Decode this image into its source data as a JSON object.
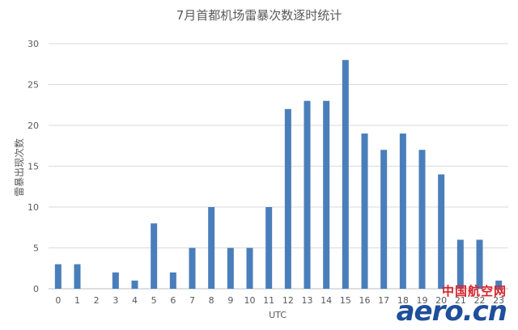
{
  "chart_data": {
    "type": "bar",
    "title": "7月首都机场雷暴次数逐时统计",
    "xlabel": "UTC",
    "ylabel": "雷暴出现次数",
    "categories": [
      "0",
      "1",
      "2",
      "3",
      "4",
      "5",
      "6",
      "7",
      "8",
      "9",
      "10",
      "11",
      "12",
      "13",
      "14",
      "15",
      "16",
      "17",
      "18",
      "19",
      "20",
      "21",
      "22",
      "23"
    ],
    "values": [
      3,
      3,
      0,
      2,
      1,
      8,
      2,
      5,
      10,
      5,
      5,
      10,
      22,
      23,
      23,
      28,
      19,
      17,
      19,
      17,
      14,
      6,
      6,
      1
    ],
    "ylim": [
      0,
      30
    ],
    "yticks": [
      0,
      5,
      10,
      15,
      20,
      25,
      30
    ],
    "grid": true,
    "data_labels": true,
    "bar_color": "#4a7ebb"
  },
  "watermark": {
    "cn": "中国航空网",
    "en": "aero.cn"
  }
}
